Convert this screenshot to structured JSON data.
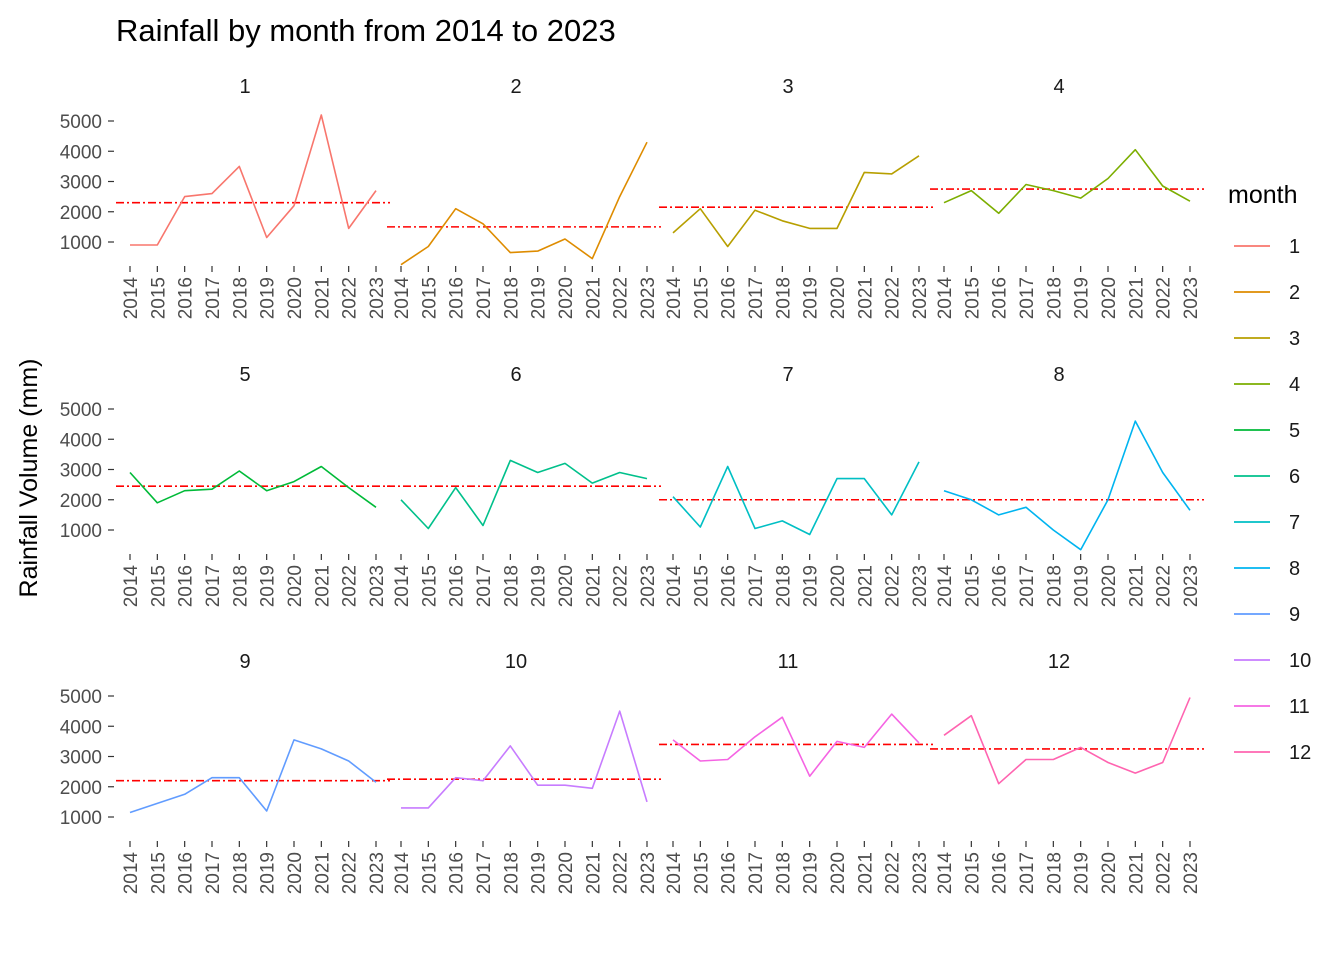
{
  "chart_data": {
    "type": "line",
    "title": "Rainfall by month from 2014 to 2023",
    "xlabel": "",
    "ylabel": "Rainfall Volume (mm)",
    "ylim": [
      0,
      5300
    ],
    "y_ticks": [
      1000,
      2000,
      3000,
      4000,
      5000
    ],
    "x": [
      "2014",
      "2015",
      "2016",
      "2017",
      "2018",
      "2019",
      "2020",
      "2021",
      "2022",
      "2023"
    ],
    "grid": false,
    "legend": {
      "title": "month",
      "placement": "right"
    },
    "reference_line": {
      "color": "#ff0000",
      "style": "dash-dot"
    },
    "panels": [
      {
        "month": "1",
        "color": "#F8766D",
        "mean": 2300,
        "values": [
          900,
          900,
          2500,
          2600,
          3500,
          1150,
          2200,
          5200,
          1450,
          2700
        ]
      },
      {
        "month": "2",
        "color": "#DE8C00",
        "mean": 1500,
        "values": [
          250,
          850,
          2100,
          1600,
          650,
          700,
          1100,
          450,
          2500,
          4300
        ]
      },
      {
        "month": "3",
        "color": "#B79F00",
        "mean": 2150,
        "values": [
          1300,
          2100,
          850,
          2050,
          1700,
          1450,
          1450,
          3300,
          3250,
          3850
        ]
      },
      {
        "month": "4",
        "color": "#7CAE00",
        "mean": 2750,
        "values": [
          2300,
          2700,
          1950,
          2900,
          2700,
          2450,
          3100,
          4050,
          2850,
          2350
        ]
      },
      {
        "month": "5",
        "color": "#00BA38",
        "mean": 2450,
        "values": [
          2900,
          1900,
          2300,
          2350,
          2950,
          2300,
          2600,
          3100,
          2400,
          1750
        ]
      },
      {
        "month": "6",
        "color": "#00C08B",
        "mean": 2450,
        "values": [
          2000,
          1050,
          2400,
          1150,
          3300,
          2900,
          3200,
          2550,
          2900,
          2700
        ]
      },
      {
        "month": "7",
        "color": "#00BFC4",
        "mean": 2000,
        "values": [
          2100,
          1100,
          3100,
          1050,
          1300,
          850,
          2700,
          2700,
          1500,
          3250
        ]
      },
      {
        "month": "8",
        "color": "#00B4F0",
        "mean": 2000,
        "values": [
          2300,
          2000,
          1500,
          1750,
          1000,
          350,
          2000,
          4600,
          2900,
          1650
        ]
      },
      {
        "month": "9",
        "color": "#619CFF",
        "mean": 2200,
        "values": [
          1150,
          1450,
          1750,
          2300,
          2300,
          1200,
          3550,
          3250,
          2850,
          2150
        ]
      },
      {
        "month": "10",
        "color": "#C77CFF",
        "mean": 2250,
        "values": [
          1300,
          1300,
          2300,
          2200,
          3350,
          2050,
          2050,
          1950,
          4500,
          1500
        ]
      },
      {
        "month": "11",
        "color": "#F564E3",
        "mean": 3400,
        "values": [
          3550,
          2850,
          2900,
          3650,
          4300,
          2350,
          3500,
          3300,
          4400,
          3450
        ]
      },
      {
        "month": "12",
        "color": "#FF64B0",
        "mean": 3250,
        "values": [
          3700,
          4350,
          2100,
          2900,
          2900,
          3300,
          2800,
          2450,
          2800,
          4950
        ]
      }
    ]
  }
}
